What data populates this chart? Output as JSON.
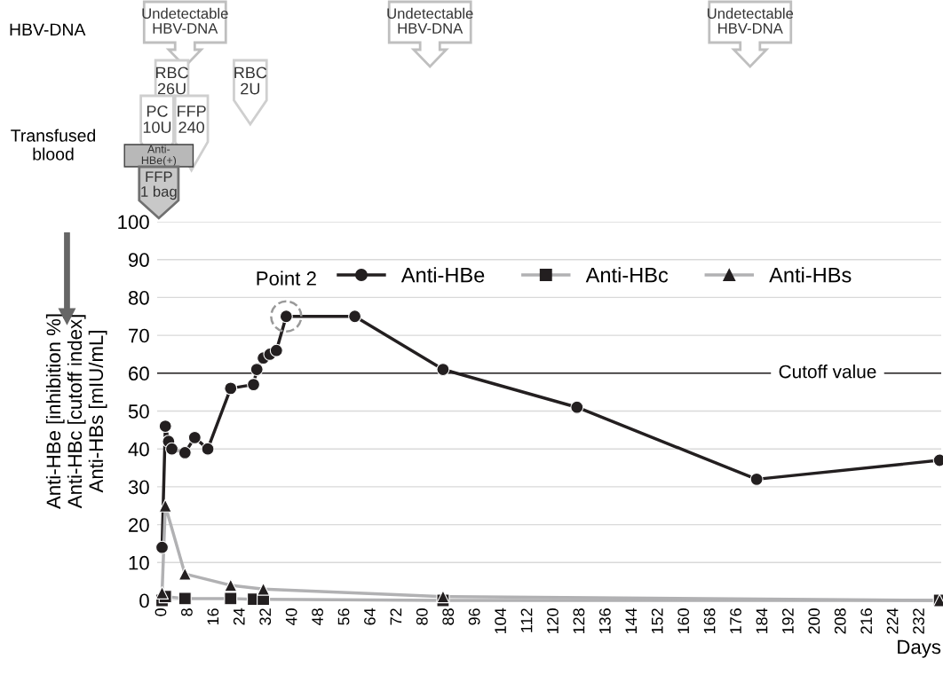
{
  "chart_data": {
    "type": "line",
    "ylabel": "Anti-HBe [inhibition %]\nAnti-HBc [cutoff index]\nAnti-HBs [mIU/mL]",
    "xlabel": "Days",
    "xlim": [
      -1.5,
      238.5
    ],
    "xticks": [
      0,
      8,
      16,
      24,
      32,
      40,
      48,
      56,
      64,
      72,
      80,
      88,
      96,
      104,
      112,
      120,
      128,
      136,
      144,
      152,
      160,
      168,
      176,
      184,
      192,
      200,
      208,
      216,
      224,
      232
    ],
    "ylim": [
      0,
      100
    ],
    "yticks": [
      0,
      10,
      20,
      30,
      40,
      50,
      60,
      70,
      80,
      90,
      100
    ],
    "grid": "y",
    "legend": "top right",
    "line_style": "solid",
    "ref_lines": [
      {
        "axis": "y",
        "value": 60,
        "label": "Cutoff value",
        "color": "#231f20"
      }
    ],
    "annotations": [
      {
        "text": "Point 2",
        "x": 38,
        "y": 75
      },
      "HBV-DNA",
      "Transfused\nblood",
      "Undetectable\nHBV-DNA",
      "Undetectable\nHBV-DNA",
      "Undetectable\nHBV-DNA",
      "RBC\n26U",
      "RBC\n2U",
      "PC\n10U",
      "FFP\n240",
      "Anti-\nHBe(+)",
      "FFP\n1 bag"
    ],
    "series": [
      {
        "name": "Anti-HBe",
        "color": "#231f20",
        "marker": "circle",
        "x": [
          0,
          1,
          2,
          3,
          7,
          10,
          14,
          21,
          28,
          29,
          31,
          33,
          35,
          38,
          59,
          86,
          127,
          182,
          238
        ],
        "values": [
          14,
          46,
          42,
          40,
          39,
          43,
          40,
          56,
          57,
          61,
          64,
          65,
          66,
          75,
          75,
          61,
          51,
          32,
          37
        ],
        "colors": [
          "#231f20",
          "#231f20",
          "#231f20",
          "#231f20",
          "#231f20",
          "#231f20",
          "#231f20",
          "#231f20",
          "#231f20",
          "#231f20",
          "#231f20",
          "#231f20",
          "#231f20",
          "#231f20",
          "#231f20",
          "#231f20",
          "#231f20",
          "#231f20",
          "#231f20"
        ]
      },
      {
        "name": "Anti-HBc",
        "color": "#b1b1b3",
        "marker": "square",
        "x": [
          0,
          1,
          7,
          21,
          28,
          31,
          86,
          238
        ],
        "values": [
          0,
          1,
          0.5,
          0.5,
          0.3,
          0.3,
          0,
          0
        ],
        "colors": [
          "#231f20",
          "#231f20",
          "#231f20",
          "#231f20",
          "#231f20",
          "#231f20",
          "#231f20",
          "#231f20"
        ]
      },
      {
        "name": "Anti-HBs",
        "color": "#b1b1b3",
        "marker": "triangle",
        "x": [
          0,
          1,
          7,
          21,
          31,
          86,
          238
        ],
        "values": [
          2,
          25,
          7,
          4,
          3,
          1,
          0
        ],
        "colors": [
          "#231f20",
          "#231f20",
          "#231f20",
          "#231f20",
          "#231f20",
          "#231f20",
          "#231f20"
        ]
      }
    ]
  }
}
